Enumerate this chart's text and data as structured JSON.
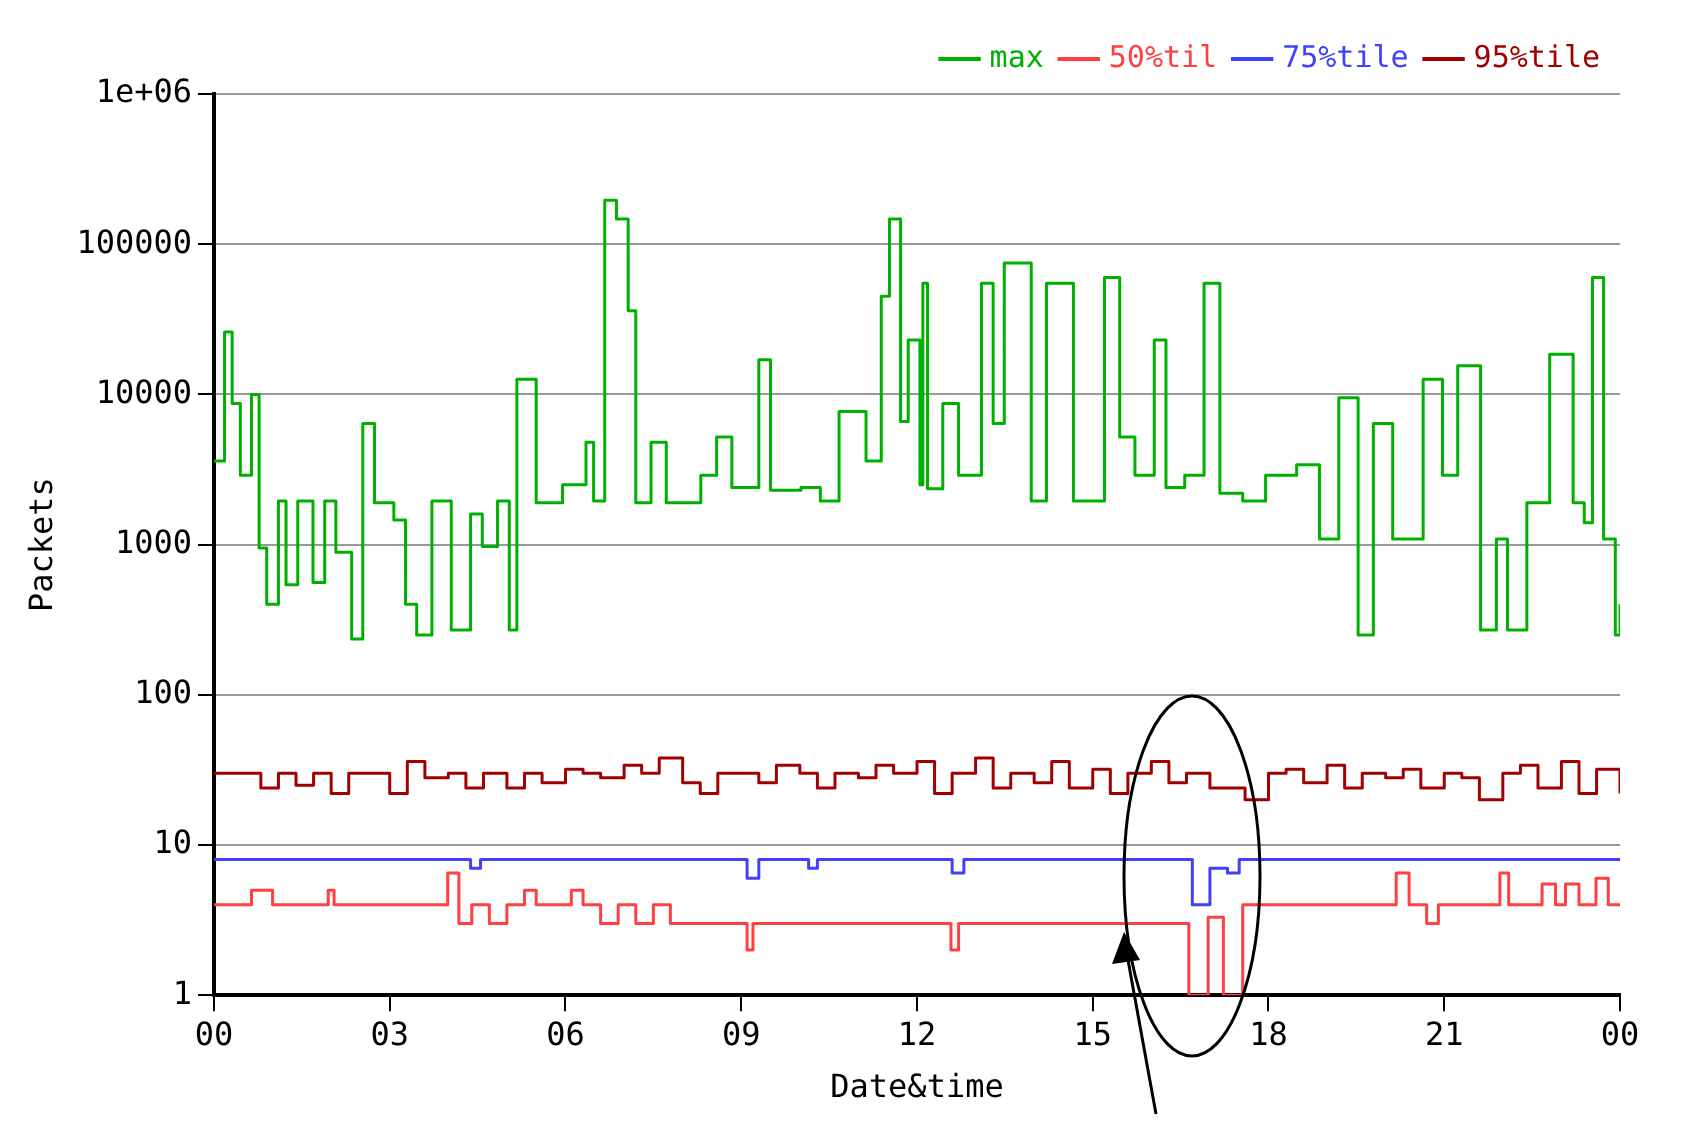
{
  "chart_data": {
    "type": "step",
    "xlabel": "Date&time",
    "ylabel": "Packets",
    "log": "y",
    "grid": "y",
    "legend": "top right",
    "marker": "none",
    "line_style": "solid",
    "xlim": [
      0,
      24
    ],
    "xticks": [
      {
        "value": 0,
        "label": "00"
      },
      {
        "value": 3,
        "label": "03"
      },
      {
        "value": 6,
        "label": "06"
      },
      {
        "value": 9,
        "label": "09"
      },
      {
        "value": 12,
        "label": "12"
      },
      {
        "value": 15,
        "label": "15"
      },
      {
        "value": 18,
        "label": "18"
      },
      {
        "value": 21,
        "label": "21"
      },
      {
        "value": 24,
        "label": "00"
      }
    ],
    "ylim": [
      1,
      1000000
    ],
    "yticks": [
      1,
      10,
      100,
      1000,
      10000,
      100000,
      {
        "value": 1000000,
        "label": "1e+06"
      }
    ],
    "series": [
      {
        "name": "max",
        "color": "#00b000",
        "x": [
          0,
          0.18,
          0.31,
          0.45,
          0.64,
          0.77,
          0.9,
          1.1,
          1.23,
          1.43,
          1.69,
          1.89,
          2.08,
          2.35,
          2.54,
          2.74,
          3.07,
          3.27,
          3.46,
          3.72,
          4.05,
          4.38,
          4.58,
          4.84,
          5.04,
          5.17,
          5.5,
          5.95,
          6.35,
          6.48,
          6.67,
          6.87,
          7.07,
          7.2,
          7.46,
          7.72,
          8.31,
          8.58,
          8.84,
          9.3,
          9.5,
          10.02,
          10.35,
          10.67,
          11.13,
          11.39,
          11.53,
          11.72,
          11.85,
          12.05,
          12.1,
          12.18,
          12.44,
          12.71,
          13.1,
          13.3,
          13.49,
          13.95,
          14.21,
          14.67,
          15.2,
          15.46,
          15.72,
          16.05,
          16.25,
          16.57,
          16.9,
          17.17,
          17.56,
          17.95,
          18.48,
          18.87,
          19.2,
          19.53,
          19.79,
          20.12,
          20.64,
          20.97,
          21.23,
          21.62,
          21.89,
          22.08,
          22.41,
          22.8,
          23.2,
          23.39,
          23.53,
          23.72,
          23.92,
          24
        ],
        "values": [
          3600,
          26000,
          8700,
          2900,
          10000,
          950,
          400,
          1950,
          540,
          1950,
          560,
          1950,
          890,
          235,
          6400,
          1900,
          1460,
          400,
          250,
          1950,
          270,
          1600,
          970,
          1950,
          270,
          12600,
          1900,
          2500,
          4800,
          1950,
          196000,
          147000,
          36000,
          1900,
          4800,
          1900,
          2900,
          5200,
          2400,
          17000,
          2300,
          2400,
          1950,
          7700,
          3600,
          45000,
          147000,
          6600,
          23000,
          2500,
          55000,
          2350,
          8700,
          2900,
          55000,
          6400,
          75000,
          1950,
          55000,
          1950,
          60000,
          5200,
          2900,
          23000,
          2400,
          2900,
          55000,
          2200,
          1950,
          2900,
          3400,
          1090,
          9500,
          250,
          6400,
          1090,
          12600,
          2900,
          15500,
          270,
          1090,
          270,
          1900,
          18500,
          1900,
          1400,
          60000,
          1090,
          250,
          400
        ]
      },
      {
        "name": "50%til",
        "color": "#ff4040",
        "x": [
          0,
          0.55,
          0.64,
          0.9,
          1,
          1.9,
          1.95,
          2.05,
          3.75,
          3.99,
          4.18,
          4.4,
          4.7,
          5,
          5.3,
          5.5,
          5.9,
          6.1,
          6.3,
          6.6,
          6.9,
          7.2,
          7.5,
          7.79,
          8.9,
          9.1,
          9.2,
          12.44,
          12.58,
          12.71,
          16.44,
          16.64,
          16.97,
          17.23,
          17.56,
          18.02,
          20,
          20.18,
          20.4,
          20.7,
          20.9,
          21.8,
          21.95,
          22.1,
          22.67,
          22.9,
          23.07,
          23.3,
          23.59,
          23.8,
          24
        ],
        "values": [
          4,
          4,
          5,
          5,
          4,
          4,
          5,
          4,
          4,
          6.5,
          3,
          4,
          3,
          4,
          5,
          4,
          4,
          5,
          4,
          3,
          4,
          3,
          4,
          3,
          3,
          2,
          3,
          3,
          2,
          3,
          3,
          1,
          3.3,
          1,
          4,
          4,
          4,
          6.5,
          4,
          3,
          4,
          4,
          6.5,
          4,
          5.5,
          4,
          5.5,
          4,
          6,
          4,
          4
        ]
      },
      {
        "name": "75%tile",
        "color": "#4040ff",
        "x": [
          0,
          4.2,
          4.38,
          4.55,
          8.9,
          9.1,
          9.3,
          10,
          10.15,
          10.3,
          12.4,
          12.6,
          12.8,
          16.3,
          16.7,
          17,
          17.1,
          17.3,
          17.5,
          24
        ],
        "values": [
          8,
          8,
          7,
          8,
          8,
          6,
          8,
          8,
          7,
          8,
          8,
          6.5,
          8,
          8,
          4,
          7,
          7,
          6.5,
          8,
          8
        ]
      },
      {
        "name": "95%tile",
        "color": "#a00000",
        "x": [
          0,
          0.5,
          0.8,
          1.1,
          1.4,
          1.7,
          2,
          2.3,
          2.6,
          3,
          3.3,
          3.6,
          4,
          4.3,
          4.6,
          5,
          5.3,
          5.6,
          6,
          6.3,
          6.6,
          7,
          7.3,
          7.6,
          8,
          8.3,
          8.6,
          9,
          9.3,
          9.6,
          10,
          10.3,
          10.6,
          11,
          11.3,
          11.6,
          12,
          12.3,
          12.6,
          13,
          13.3,
          13.6,
          14,
          14.3,
          14.6,
          15,
          15.3,
          15.6,
          16,
          16.3,
          16.6,
          17,
          17.3,
          17.6,
          18,
          18.3,
          18.6,
          19,
          19.3,
          19.6,
          20,
          20.3,
          20.6,
          21,
          21.3,
          21.6,
          22,
          22.3,
          22.6,
          23,
          23.3,
          23.6,
          24
        ],
        "values": [
          30,
          30,
          24,
          30,
          25,
          30,
          22,
          30,
          30,
          22,
          36,
          28,
          30,
          24,
          30,
          24,
          30,
          26,
          32,
          30,
          28,
          34,
          30,
          38,
          26,
          22,
          30,
          30,
          26,
          34,
          30,
          24,
          30,
          28,
          34,
          30,
          36,
          22,
          30,
          38,
          24,
          30,
          26,
          36,
          24,
          32,
          22,
          30,
          36,
          26,
          30,
          24,
          24,
          20,
          30,
          32,
          26,
          34,
          24,
          30,
          28,
          32,
          24,
          30,
          28,
          20,
          30,
          34,
          24,
          36,
          22,
          32,
          22
        ]
      }
    ]
  }
}
